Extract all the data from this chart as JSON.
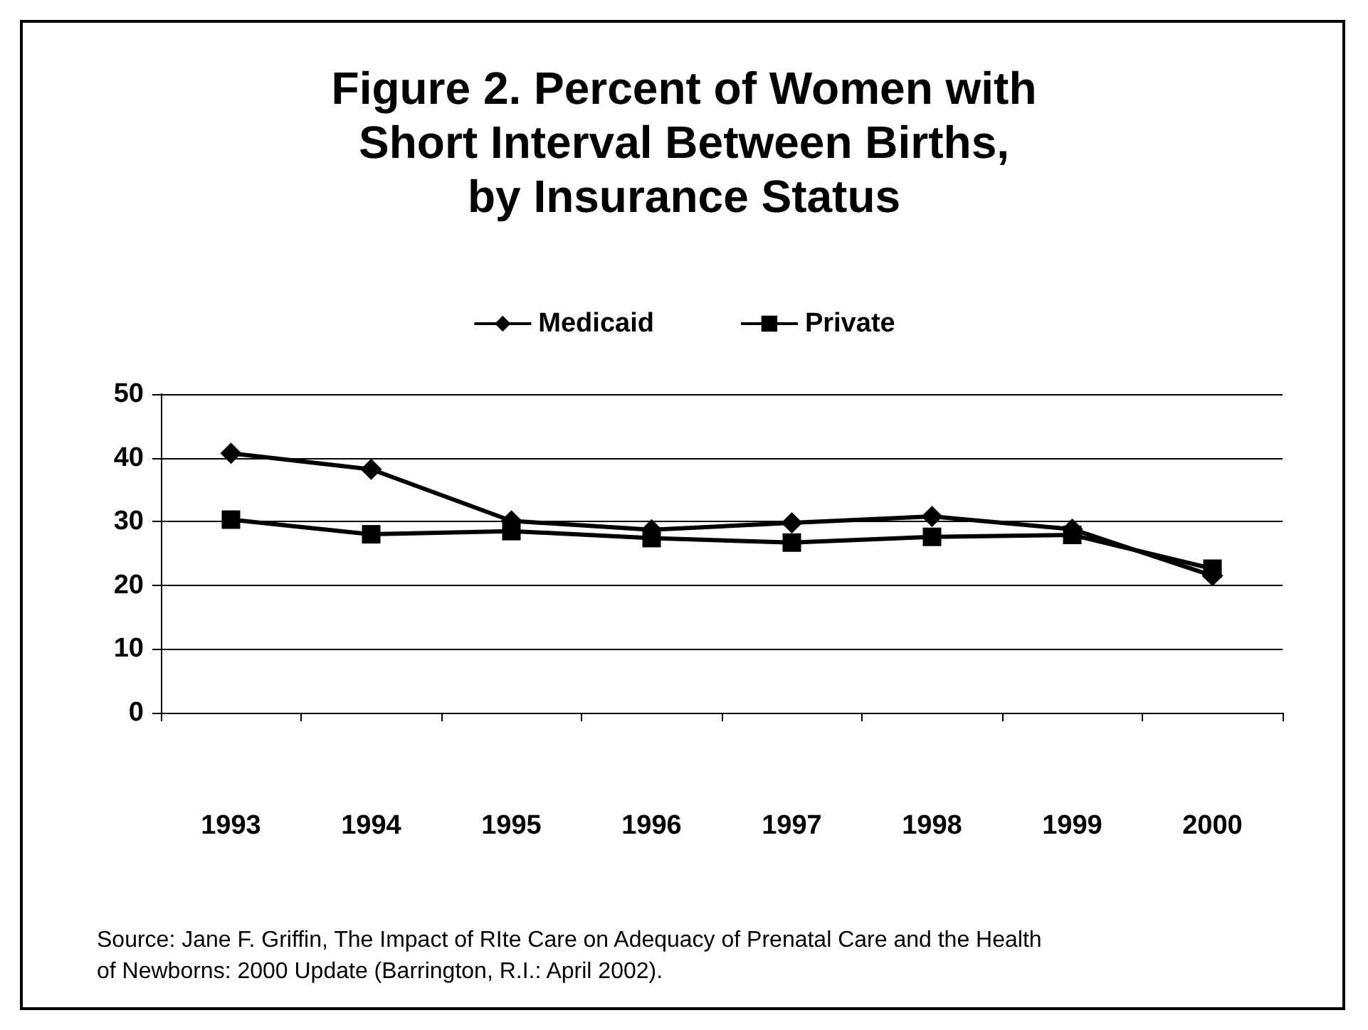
{
  "chart_data": {
    "type": "line",
    "title": "Figure 2. Percent of Women with\nShort Interval Between Births,\nby Insurance Status",
    "categories": [
      "1993",
      "1994",
      "1995",
      "1996",
      "1997",
      "1998",
      "1999",
      "2000"
    ],
    "series": [
      {
        "name": "Medicaid",
        "color": "#000000",
        "marker": "diamond",
        "values": [
          40.7,
          38.2,
          30.1,
          28.7,
          29.8,
          30.8,
          28.8,
          21.5
        ]
      },
      {
        "name": "Private",
        "color": "#000000",
        "marker": "square",
        "values": [
          30.3,
          28.0,
          28.5,
          27.4,
          26.7,
          27.6,
          27.9,
          22.6
        ]
      }
    ],
    "ylim": [
      0,
      50
    ],
    "yticks": [
      0,
      10,
      20,
      30,
      40,
      50
    ],
    "grid": "y",
    "legend": "top",
    "line_style": "solid",
    "annotations": [
      "Source: Jane F. Griffin, The Impact of RIte Care on Adequacy of Prenatal Care and the Health of Newborns: 2000 Update (Barrington, R.I.: April 2002)."
    ]
  }
}
